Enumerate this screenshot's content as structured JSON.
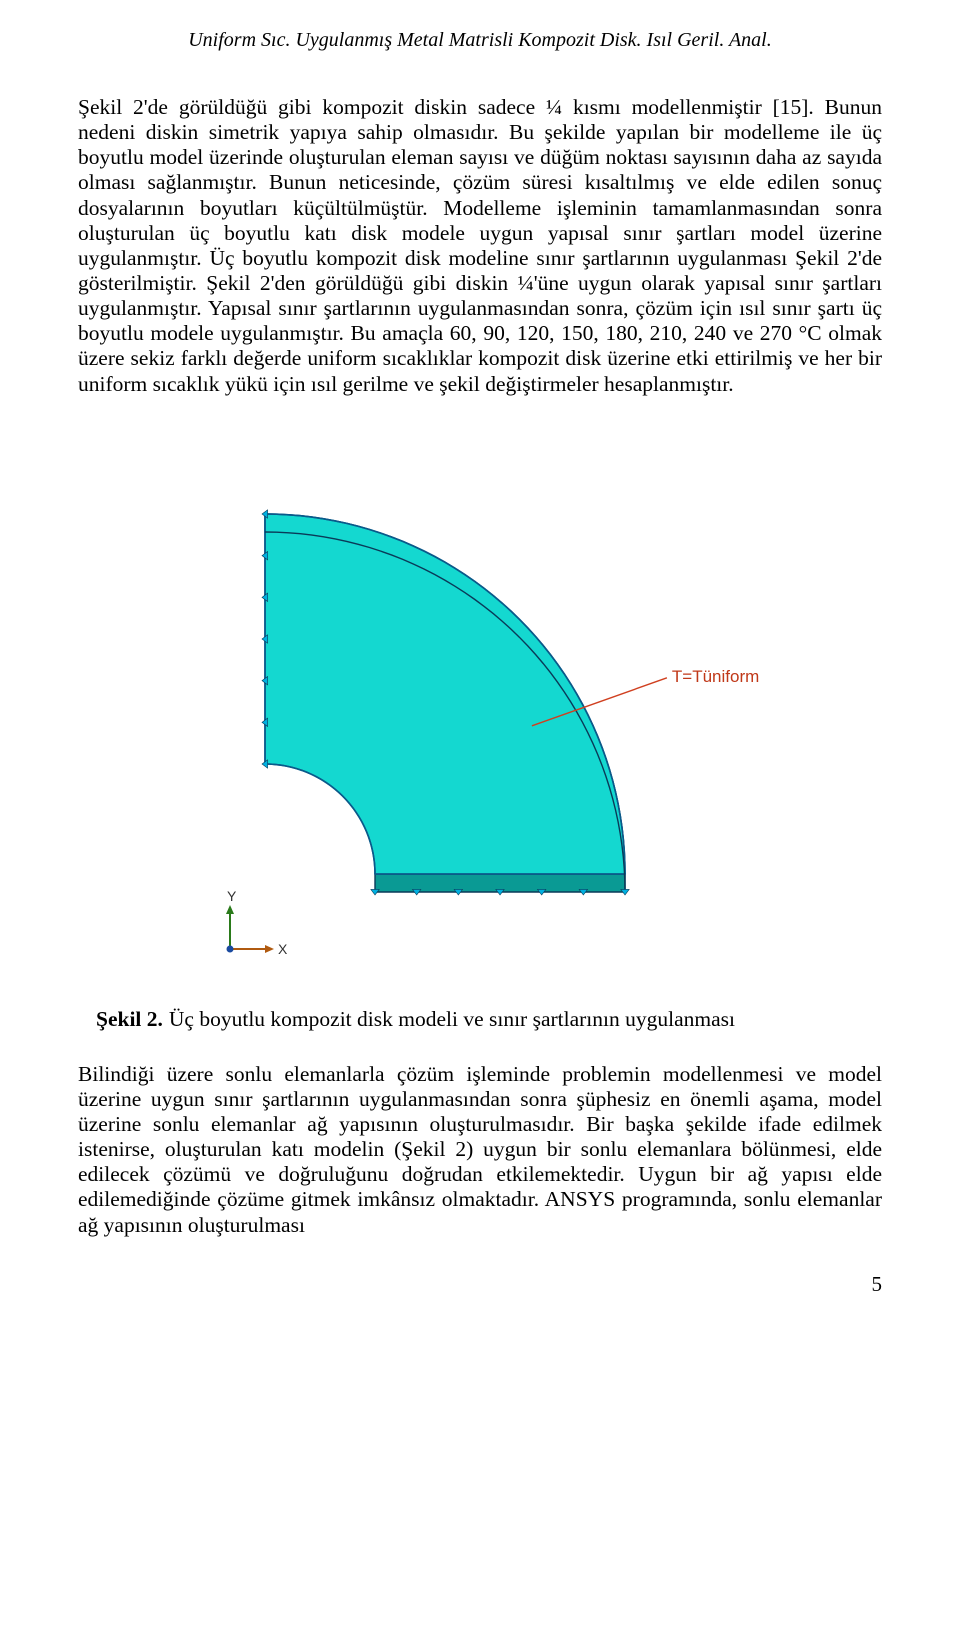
{
  "running_header": "Uniform Sıc. Uygulanmış Metal Matrisli Kompozit Disk. Isıl Geril. Anal.",
  "paragraph1": "Şekil 2'de görüldüğü gibi kompozit diskin sadece ¼ kısmı modellenmiştir [15]. Bunun nedeni diskin simetrik yapıya sahip olmasıdır. Bu şekilde yapılan bir modelleme ile üç boyutlu model üzerinde oluşturulan eleman sayısı ve düğüm noktası sayısının daha az sayıda olması sağlanmıştır. Bunun neticesinde, çözüm süresi kısaltılmış ve elde edilen sonuç dosyalarının boyutları küçültülmüştür. Modelleme işleminin tamamlanmasından sonra oluşturulan üç boyutlu katı disk modele uygun yapısal sınır şartları model üzerine uygulanmıştır. Üç boyutlu kompozit disk modeline sınır şartlarının uygulanması Şekil 2'de gösterilmiştir. Şekil 2'den görüldüğü gibi diskin ¼'üne uygun olarak yapısal sınır şartları uygulanmıştır. Yapısal sınır şartlarının uygulanmasından sonra, çözüm için ısıl sınır şartı üç boyutlu modele uygulanmıştır. Bu amaçla 60, 90, 120, 150, 180, 210, 240 ve 270 °C olmak üzere sekiz farklı değerde uniform sıcaklıklar kompozit disk üzerine etki ettirilmiş ve her bir uniform sıcaklık yükü için ısıl gerilme ve şekil değiştirmeler hesaplanmıştır.",
  "figure": {
    "label_bold": "Şekil 2.",
    "caption": "Üç boyutlu kompozit disk modeli ve sınır şartlarının uygulanması",
    "annotation": "T=Tüniform",
    "axes": {
      "y_label": "Y",
      "x_label": "X"
    },
    "colors": {
      "top_face": "#14d8d0",
      "side_face": "#0a9a94",
      "side_edge": "#0a5a8a",
      "edge": "#0a3a58",
      "bc_triangle": "#00b0e0",
      "annotation_leader": "#d04020",
      "annotation_text": "#c03818",
      "y_axis": "#2a7a1a",
      "x_axis": "#b05a10"
    }
  },
  "paragraph2": "Bilindiği üzere sonlu elemanlarla çözüm işleminde problemin modellenmesi ve model üzerine uygun sınır şartlarının uygulanmasından sonra şüphesiz en önemli aşama, model üzerine sonlu elemanlar ağ yapısının oluşturulmasıdır. Bir başka şekilde ifade edilmek istenirse, oluşturulan katı modelin (Şekil 2) uygun bir sonlu elemanlara bölünmesi, elde edilecek çözümü ve doğruluğunu doğrudan etkilemektedir. Uygun bir ağ yapısı elde edilemediğinde çözüme gitmek imkânsız olmaktadır. ANSYS programında, sonlu elemanlar ağ yapısının oluşturulması",
  "page_number": "5"
}
